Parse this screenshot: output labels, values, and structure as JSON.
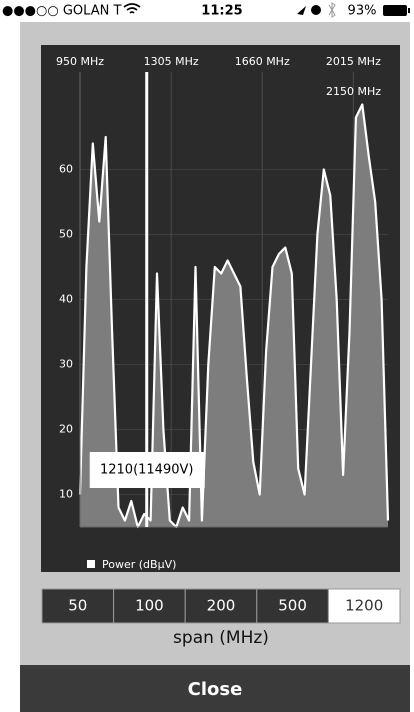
{
  "status_bar": {
    "carrier": "●●●○○ GOLAN T",
    "time": "11:25",
    "battery": "93%"
  },
  "chart_data": {
    "type": "area",
    "x": [
      950,
      975,
      1000,
      1025,
      1050,
      1075,
      1100,
      1125,
      1150,
      1175,
      1200,
      1225,
      1250,
      1275,
      1300,
      1325,
      1350,
      1375,
      1400,
      1425,
      1450,
      1475,
      1500,
      1525,
      1550,
      1575,
      1600,
      1625,
      1650,
      1675,
      1700,
      1725,
      1750,
      1775,
      1800,
      1825,
      1850,
      1875,
      1900,
      1925,
      1950,
      1975,
      2000,
      2025,
      2050,
      2075,
      2100,
      2125,
      2150
    ],
    "series": [
      {
        "name": "Power (dBµV)",
        "color": "#ffffff",
        "values": [
          10,
          45,
          64,
          52,
          65,
          35,
          8,
          6,
          9,
          5,
          7,
          6,
          44,
          20,
          6,
          5,
          8,
          6,
          45,
          6,
          30,
          45,
          44,
          46,
          44,
          42,
          28,
          15,
          10,
          32,
          45,
          47,
          48,
          44,
          14,
          10,
          30,
          50,
          60,
          56,
          40,
          13,
          35,
          68,
          70,
          62,
          55,
          40,
          6
        ]
      }
    ],
    "xlim": [
      950,
      2150
    ],
    "xticks": [
      {
        "value": 950,
        "label": "950 MHz"
      },
      {
        "value": 1305,
        "label": "1305 MHz"
      },
      {
        "value": 1660,
        "label": "1660 MHz"
      },
      {
        "value": 2015,
        "label": "2015 MHz"
      },
      {
        "value": 2150,
        "label": "2150 MHz"
      }
    ],
    "ylim": [
      5,
      75
    ],
    "yticks": [
      10,
      20,
      30,
      40,
      50,
      60
    ],
    "grid": true,
    "marker": {
      "x": 1210,
      "label": "1210(11490V)"
    }
  },
  "span": {
    "options": [
      "50",
      "100",
      "200",
      "500",
      "1200"
    ],
    "selected": 4,
    "label": "span (MHz)"
  },
  "close_button": "Close"
}
